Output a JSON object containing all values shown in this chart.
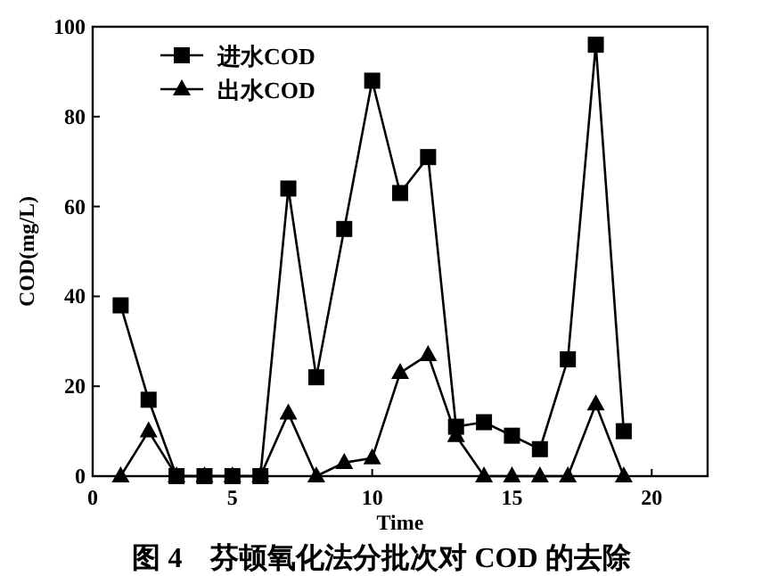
{
  "chart_data": {
    "type": "line",
    "title": "图 4　芬顿氧化法分批次对 COD 的去除",
    "xlabel": "Time",
    "ylabel": "COD(mg/L)",
    "x": [
      1,
      2,
      3,
      4,
      5,
      6,
      7,
      8,
      9,
      10,
      11,
      12,
      13,
      14,
      15,
      16,
      17,
      18,
      19
    ],
    "series": [
      {
        "name": "进水COD",
        "color": "#000000",
        "marker": "square",
        "values": [
          38,
          17,
          0,
          0,
          0,
          0,
          64,
          22,
          55,
          88,
          63,
          71,
          11,
          12,
          9,
          6,
          26,
          96,
          10
        ]
      },
      {
        "name": "出水COD",
        "color": "#000000",
        "marker": "triangle",
        "values": [
          0,
          10,
          0,
          0,
          0,
          0,
          14,
          0,
          3,
          4,
          23,
          27,
          9,
          0,
          0,
          0,
          0,
          16,
          0
        ]
      }
    ],
    "xlim": [
      0,
      22
    ],
    "xticks": [
      0,
      5,
      10,
      15,
      20
    ],
    "ylim": [
      0,
      100
    ],
    "yticks": [
      0,
      20,
      40,
      60,
      80,
      100
    ],
    "legend": "top left",
    "grid": false,
    "line_style": "solid"
  }
}
